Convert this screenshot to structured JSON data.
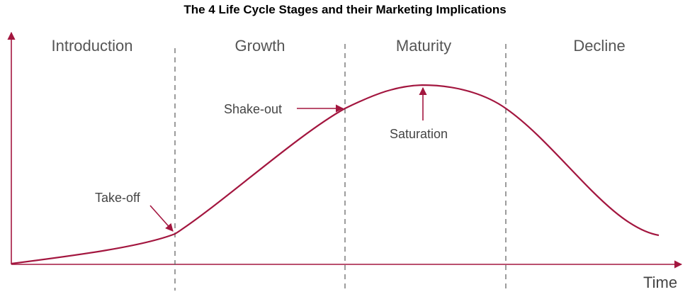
{
  "title": "The 4 Life Cycle Stages and their Marketing Implications",
  "stages": [
    "Introduction",
    "Growth",
    "Maturity",
    "Decline"
  ],
  "annotations": {
    "takeoff": "Take-off",
    "shakeout": "Shake-out",
    "saturation": "Saturation"
  },
  "axis": {
    "x_label": "Time"
  },
  "colors": {
    "curve": "#a3163f",
    "axis": "#a3163f",
    "divider": "#666666"
  }
}
